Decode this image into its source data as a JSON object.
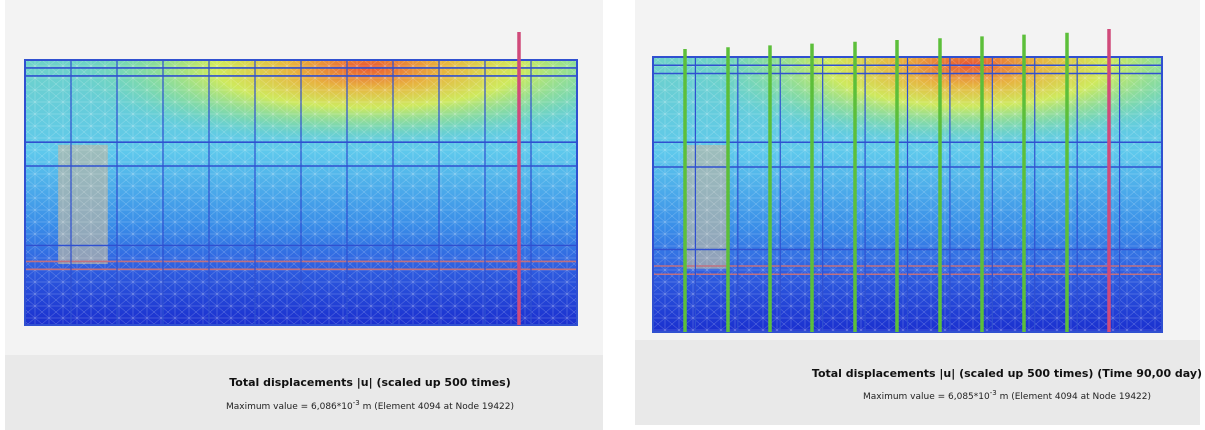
{
  "panels": [
    {
      "title": "Total displacements |u| (scaled up 500 times)",
      "max_prefix": "Maximum value = 6,086*10",
      "max_exponent": "-3",
      "max_suffix": " m (Element 4094 at Node 19422)"
    },
    {
      "title": "Total displacements |u| (scaled up 500 times) (Time 90,00 day)",
      "max_prefix": "Maximum value = 6,085*10",
      "max_exponent": "-3",
      "max_suffix": " m (Element 4094 at Node 19422)"
    }
  ]
}
